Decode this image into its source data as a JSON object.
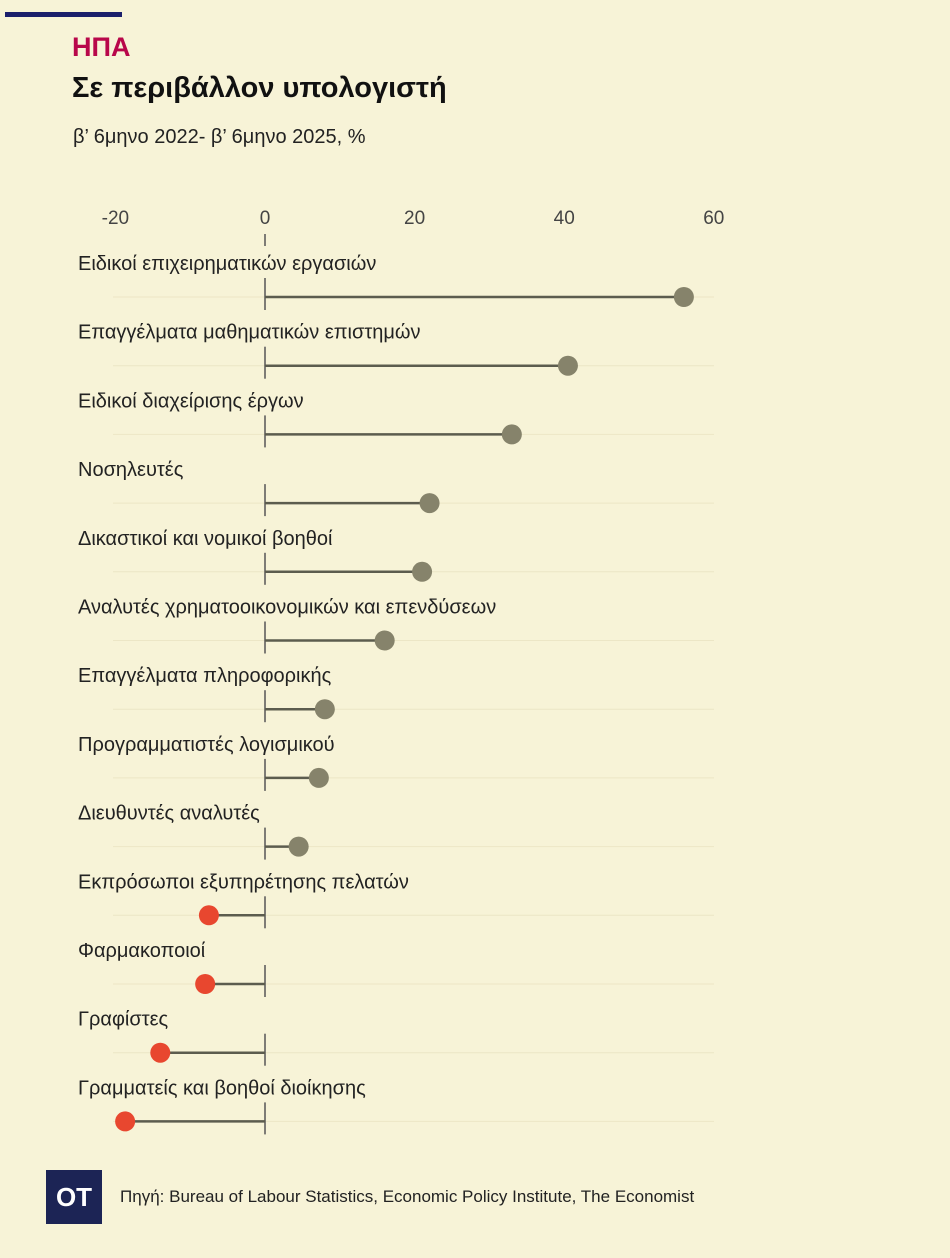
{
  "header": {
    "kicker": "ΗΠΑ",
    "title": "Σε περιβάλλον υπολογιστή",
    "subtitle": "β’ 6μηνο 2022- β’ 6μηνο 2025, %"
  },
  "footer": {
    "logo": "OT",
    "source": "Πηγή: Bureau of Labour Statistics, Economic Policy Institute, The Economist"
  },
  "colors": {
    "positive": "#86836b",
    "negative": "#e8472f",
    "line": "#5c5c4e",
    "background": "#f7f3d7"
  },
  "chart_data": {
    "type": "dot-lollipop",
    "title": "Σε περιβάλλον υπολογιστή",
    "xlabel": "",
    "ylabel": "",
    "xlim": [
      -20,
      60
    ],
    "xticks": [
      "-20",
      "0",
      "20",
      "40",
      "60"
    ],
    "xtick_values": [
      -20,
      0,
      20,
      40,
      60
    ],
    "categories": [
      "Ειδικοί επιχειρηματικών εργασιών",
      "Επαγγέλματα μαθηματικών επιστημών",
      "Ειδικοί διαχείρισης έργων",
      "Νοσηλευτές",
      "Δικαστικοί και νομικοί βοηθοί",
      "Αναλυτές χρηματοοικονομικών και επενδύσεων",
      "Επαγγέλματα πληροφορικής",
      "Προγραμματιστές λογισμικού",
      "Διευθυντές αναλυτές",
      "Εκπρόσωποι εξυπηρέτησης πελατών",
      "Φαρμακοποιοί",
      "Γραφίστες",
      "Γραμματείς και βοηθοί διοίκησης"
    ],
    "values": [
      56,
      40.5,
      33,
      22,
      21,
      16,
      8,
      7.2,
      4.5,
      -7.5,
      -8,
      -14,
      -18.7
    ]
  }
}
